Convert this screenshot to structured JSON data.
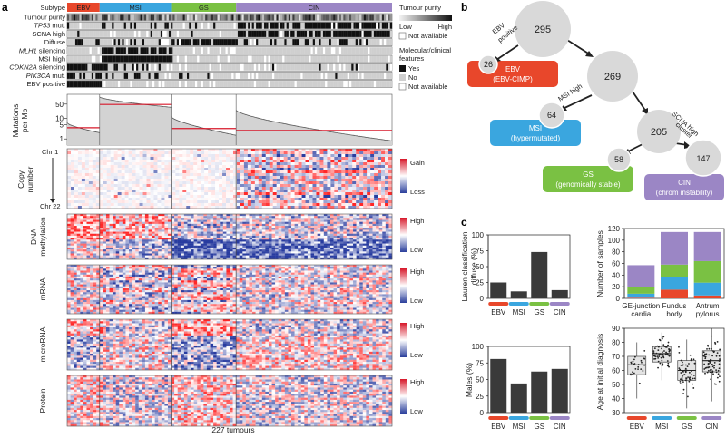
{
  "panel_letters": {
    "a": "a",
    "b": "b",
    "c": "c"
  },
  "colors": {
    "EBV": "#e8472b",
    "MSI": "#3aa6df",
    "GS": "#7ac143",
    "CIN": "#9b86c5"
  },
  "panel_a": {
    "subtype_label": "Subtype",
    "subtypes": [
      "EBV",
      "MSI",
      "GS",
      "CIN"
    ],
    "subtype_fractions": [
      0.1,
      0.22,
      0.2,
      0.48
    ],
    "feature_rows": [
      {
        "label": "Tumour purity",
        "italic": false
      },
      {
        "label": "TP53",
        "italic": true,
        "suffix": " mut."
      },
      {
        "label": "SCNA high",
        "italic": false
      },
      {
        "label": "Diffuse",
        "italic": false
      },
      {
        "label": "MLH1",
        "italic": true,
        "suffix": " silencing"
      },
      {
        "label": "MSI high",
        "italic": false
      },
      {
        "label": "CDKN2A",
        "italic": true,
        "suffix": " silencing"
      },
      {
        "label": "PIK3CA",
        "italic": true,
        "suffix": " mut."
      },
      {
        "label": "EBV positive",
        "italic": false
      }
    ],
    "legend_purity": {
      "title": "Tumour purity",
      "low": "Low",
      "high": "High",
      "na": "Not available"
    },
    "legend_features": {
      "title_line1": "Molecular/clinical",
      "title_line2": "features",
      "yes": "Yes",
      "no": "No",
      "na": "Not available"
    },
    "mutations": {
      "ylabel_line1": "Mutations",
      "ylabel_line2": "per Mb",
      "ticks": [
        "50",
        "10",
        "5",
        "1"
      ]
    },
    "copy_number": {
      "ylabel_line1": "Copy",
      "ylabel_line2": "number",
      "chr_top": "Chr 1",
      "chr_bottom": "Chr 22",
      "gain": "Gain",
      "loss": "Loss"
    },
    "heatmaps": [
      {
        "ylabel": "DNA",
        "ylabel2": "methylation",
        "high": "High",
        "low": "Low"
      },
      {
        "ylabel": "mRNA",
        "ylabel2": "",
        "high": "High",
        "low": "Low"
      },
      {
        "ylabel": "microRNA",
        "ylabel2": "",
        "high": "High",
        "low": "Low"
      },
      {
        "ylabel": "Protein",
        "ylabel2": "",
        "high": "High",
        "low": "Low"
      }
    ],
    "xlabel": "227 tumours"
  },
  "panel_b": {
    "nodes": [
      {
        "value": "295"
      },
      {
        "value": "269"
      },
      {
        "value": "205"
      },
      {
        "value": "26"
      },
      {
        "value": "64"
      },
      {
        "value": "58"
      },
      {
        "value": "147"
      }
    ],
    "edge_labels": {
      "ebv_line1": "EBV",
      "ebv_line2": "positive",
      "msi": "MSI high",
      "scna_line1": "SCNA high",
      "scna_line2": "cluster"
    },
    "boxes": [
      {
        "title": "EBV",
        "subtitle": "(EBV-CIMP)"
      },
      {
        "title": "MSI",
        "subtitle": "(hypermutated)"
      },
      {
        "title": "GS",
        "subtitle": "(genomically stable)"
      },
      {
        "title": "CIN",
        "subtitle": "(chrom instability)"
      }
    ]
  },
  "chart_data": [
    {
      "type": "bar",
      "categories": [
        "EBV",
        "MSI",
        "GS",
        "CIN"
      ],
      "values": [
        25,
        11,
        73,
        13
      ],
      "ylabel_line1": "Lauren classification",
      "ylabel_line2": "diffuse (%)",
      "ylim": [
        0,
        100
      ],
      "yticks": [
        "0",
        "25",
        "50",
        "75",
        "100"
      ]
    },
    {
      "type": "bar",
      "stacked": true,
      "categories": [
        "GE-junction cardia",
        "Fundus body",
        "Antrum pylorus"
      ],
      "category_lines": [
        [
          "GE-junction",
          "cardia"
        ],
        [
          "Fundus",
          "body"
        ],
        [
          "Antrum",
          "pylorus"
        ]
      ],
      "series": [
        {
          "name": "EBV",
          "values": [
            1,
            15,
            5
          ]
        },
        {
          "name": "MSI",
          "values": [
            7,
            21,
            22
          ]
        },
        {
          "name": "GS",
          "values": [
            11,
            22,
            37
          ]
        },
        {
          "name": "CIN",
          "values": [
            38,
            56,
            50
          ]
        }
      ],
      "ylabel": "Number of samples",
      "ylim": [
        0,
        120
      ],
      "yticks": [
        "0",
        "20",
        "40",
        "60",
        "80",
        "100",
        "120"
      ]
    },
    {
      "type": "bar",
      "categories": [
        "EBV",
        "MSI",
        "GS",
        "CIN"
      ],
      "values": [
        81,
        44,
        62,
        66
      ],
      "ylabel": "Males (%)",
      "ylim": [
        0,
        100
      ],
      "yticks": [
        "0",
        "25",
        "50",
        "75",
        "100"
      ]
    },
    {
      "type": "box",
      "categories": [
        "EBV",
        "MSI",
        "GS",
        "CIN"
      ],
      "boxes": [
        {
          "min": 40,
          "q1": 57,
          "median": 64,
          "q3": 70,
          "max": 80
        },
        {
          "min": 53,
          "q1": 66,
          "median": 72,
          "q3": 77,
          "max": 87
        },
        {
          "min": 33,
          "q1": 53,
          "median": 60,
          "q3": 67,
          "max": 82
        },
        {
          "min": 38,
          "q1": 59,
          "median": 67,
          "q3": 74,
          "max": 90
        }
      ],
      "ylabel": "Age at initial diagnosis",
      "ylim": [
        30,
        90
      ],
      "yticks": [
        "30",
        "40",
        "50",
        "60",
        "70",
        "80",
        "90"
      ]
    }
  ]
}
